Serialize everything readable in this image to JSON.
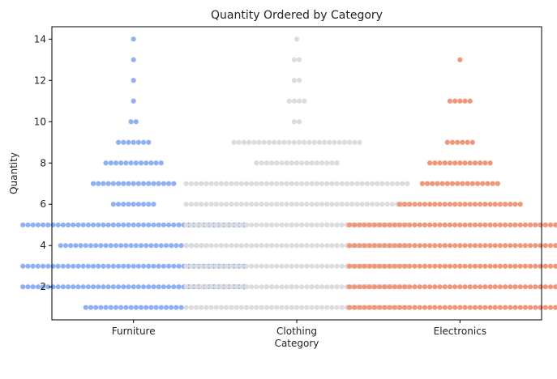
{
  "chart_data": {
    "type": "swarm",
    "title": "Quantity Ordered by Category",
    "xlabel": "Category",
    "ylabel": "Quantity",
    "categories": [
      "Furniture",
      "Clothing",
      "Electronics"
    ],
    "yticks": [
      2,
      4,
      6,
      8,
      10,
      12,
      14
    ],
    "ylim": [
      0.4,
      14.6
    ],
    "grid": false,
    "series": [
      {
        "category": "Furniture",
        "color": "#8fb1f4",
        "counts": {
          "1": 20,
          "2": 45,
          "3": 45,
          "4": 30,
          "5": 45,
          "6": 9,
          "7": 17,
          "8": 12,
          "9": 7,
          "10": 2,
          "11": 1,
          "12": 1,
          "13": 1,
          "14": 1
        }
      },
      {
        "category": "Clothing",
        "color": "#dcdcdc",
        "counts": {
          "1": 45,
          "2": 45,
          "3": 45,
          "4": 45,
          "5": 45,
          "6": 45,
          "7": 45,
          "8": 17,
          "9": 26,
          "10": 2,
          "11": 4,
          "12": 2,
          "13": 2,
          "14": 1
        }
      },
      {
        "category": "Electronics",
        "color": "#f0977a",
        "counts": {
          "1": 45,
          "2": 45,
          "3": 45,
          "4": 45,
          "5": 45,
          "6": 25,
          "7": 16,
          "8": 13,
          "9": 6,
          "10": 0,
          "11": 5,
          "12": 0,
          "13": 1,
          "14": 0
        }
      }
    ]
  }
}
